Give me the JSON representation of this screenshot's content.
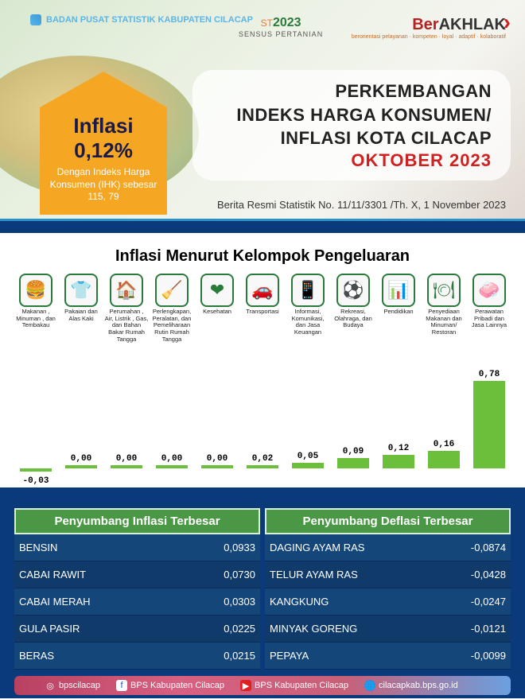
{
  "header": {
    "bps_logo_text": "BADAN PUSAT STATISTIK\nKABUPATEN CILACAP",
    "sensus_prefix": "ST",
    "sensus_year": "2023",
    "sensus_sub": "SENSUS PERTANIAN",
    "akhlak_red": "Ber",
    "akhlak_black": "AKHLAK",
    "akhlak_sub": "berorientasi pelayanan · kompeten · loyal · adaptif · kolaboratif",
    "arrow_title": "Inflasi",
    "arrow_value": "0,12%",
    "arrow_desc": "Dengan Indeks Harga Konsumen (IHK) sebesar 115, 79",
    "main_title_l1": "PERKEMBANGAN",
    "main_title_l2": "INDEKS HARGA KONSUMEN/",
    "main_title_l3": "INFLASI KOTA CILACAP",
    "main_title_date": "OKTOBER 2023",
    "subtitle": "Berita Resmi Statistik No. 11/11/3301 /Th. X,  1 November  2023"
  },
  "chart": {
    "title": "Inflasi Menurut Kelompok Pengeluaran",
    "max_value": 0.78,
    "bar_color": "#6bbf3a",
    "categories": [
      {
        "label": "Makanan , Minuman , dan Tembakau",
        "icon": "🍔",
        "value": -0.03,
        "display": "-0,03"
      },
      {
        "label": "Pakaian dan Alas Kaki",
        "icon": "👕",
        "value": 0.0,
        "display": "0,00"
      },
      {
        "label": "Perumahan , Air, Listrik , Gas, dan Bahan Bakar Rumah Tangga",
        "icon": "🏠",
        "value": 0.0,
        "display": "0,00"
      },
      {
        "label": "Perlengkapan, Peralatan, dan Pemeliharaan Rutin Rumah Tangga",
        "icon": "🧹",
        "value": 0.0,
        "display": "0,00"
      },
      {
        "label": "Kesehatan",
        "icon": "❤",
        "value": 0.0,
        "display": "0,00"
      },
      {
        "label": "Transportasi",
        "icon": "🚗",
        "value": 0.02,
        "display": "0,02"
      },
      {
        "label": "Informasi, Komunikasi, dan Jasa Keuangan",
        "icon": "📱",
        "value": 0.05,
        "display": "0,05"
      },
      {
        "label": "Rekreasi, Olahraga, dan Budaya",
        "icon": "⚽",
        "value": 0.09,
        "display": "0,09"
      },
      {
        "label": "Pendidikan",
        "icon": "📊",
        "value": 0.12,
        "display": "0,12"
      },
      {
        "label": "Penyediaan Makanan dan Minuman/ Restoran",
        "icon": "🍽",
        "value": 0.16,
        "display": "0,16"
      },
      {
        "label": "Perawatan Pribadi dan Jasa Lainnya",
        "icon": "🧼",
        "value": 0.78,
        "display": "0,78"
      }
    ]
  },
  "tables": {
    "inflation": {
      "title": "Penyumbang   Inflasi  Terbesar",
      "rows": [
        {
          "item": "BENSIN",
          "value": "0,0933"
        },
        {
          "item": "CABAI RAWIT",
          "value": "0,0730"
        },
        {
          "item": "CABAI MERAH",
          "value": "0,0303"
        },
        {
          "item": "GULA PASIR",
          "value": "0,0225"
        },
        {
          "item": "BERAS",
          "value": "0,0215"
        }
      ]
    },
    "deflation": {
      "title": "Penyumbang   Deflasi  Terbesar",
      "rows": [
        {
          "item": "DAGING AYAM RAS",
          "value": "-0,0874"
        },
        {
          "item": "TELUR AYAM RAS",
          "value": "-0,0428"
        },
        {
          "item": "KANGKUNG",
          "value": "-0,0247"
        },
        {
          "item": "MINYAK GORENG",
          "value": "-0,0121"
        },
        {
          "item": "PEPAYA",
          "value": "-0,0099"
        }
      ]
    }
  },
  "footer": {
    "instagram": "bpscilacap",
    "facebook": "BPS Kabupaten Cilacap",
    "youtube": "BPS Kabupaten Cilacap",
    "website": "cilacapkab.bps.go.id"
  }
}
